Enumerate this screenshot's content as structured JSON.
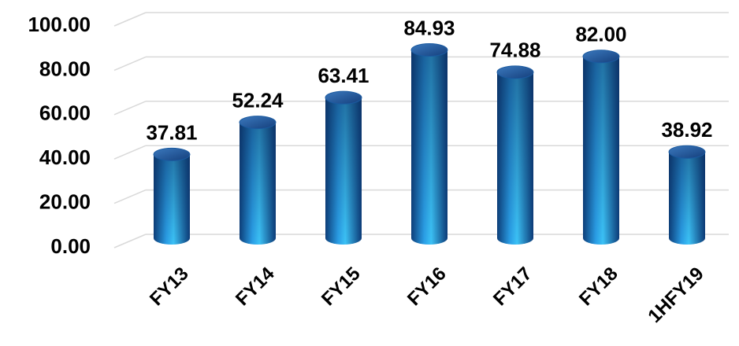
{
  "chart_data": {
    "type": "cylinder-bar",
    "categories": [
      "FY13",
      "FY14",
      "FY15",
      "FY16",
      "FY17",
      "FY18",
      "1HFY19"
    ],
    "values": [
      37.81,
      52.24,
      63.41,
      84.93,
      74.88,
      82.0,
      38.92
    ],
    "value_labels": [
      "37.81",
      "52.24",
      "63.41",
      "84.93",
      "74.88",
      "82.00",
      "38.92"
    ],
    "ylim": [
      0,
      100
    ],
    "yticks": [
      {
        "value": 0,
        "label": "0.00"
      },
      {
        "value": 20,
        "label": "20.00"
      },
      {
        "value": 40,
        "label": "40.00"
      },
      {
        "value": 60,
        "label": "60.00"
      },
      {
        "value": 80,
        "label": "80.00"
      },
      {
        "value": 100,
        "label": "100.00"
      }
    ],
    "grid": true,
    "color": "#1f74c4"
  }
}
